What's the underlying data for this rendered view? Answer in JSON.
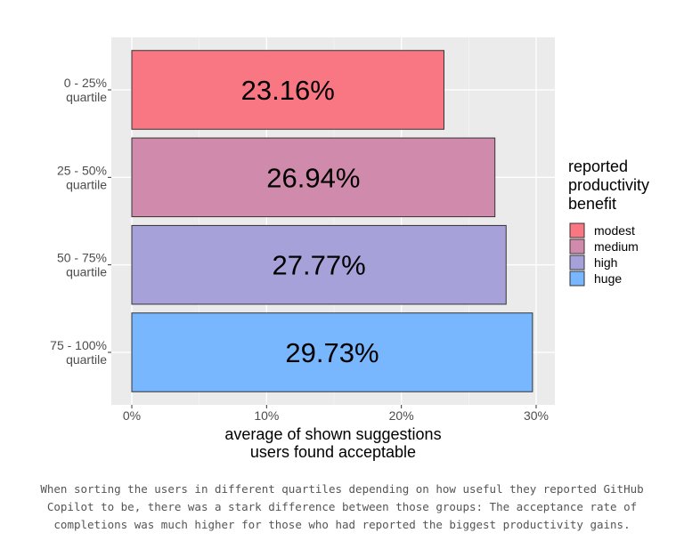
{
  "chart_data": {
    "type": "bar",
    "orientation": "horizontal",
    "categories": [
      "0 - 25%\nquartile",
      "25 - 50%\nquartile",
      "50 - 75%\nquartile",
      "75 - 100%\nquartile"
    ],
    "values": [
      23.16,
      26.94,
      27.77,
      29.73
    ],
    "data_labels": [
      "23.16%",
      "26.94%",
      "27.77%",
      "29.73%"
    ],
    "xlabel": "average of shown suggestions\nusers found acceptable",
    "ylabel": "",
    "xlim": [
      0,
      30
    ],
    "x_ticks": [
      "0%",
      "10%",
      "20%",
      "30%"
    ],
    "grid": true,
    "legend": {
      "title": "reported\nproductivity\nbenefit",
      "position": "right",
      "entries": [
        {
          "label": "modest",
          "color": "#f87783"
        },
        {
          "label": "medium",
          "color": "#d08aab"
        },
        {
          "label": "high",
          "color": "#a6a1d9"
        },
        {
          "label": "huge",
          "color": "#78b6fe"
        }
      ]
    },
    "panel_background": "#ebebeb"
  },
  "caption": "When sorting the users in different quartiles depending on how useful they reported GitHub Copilot to be, there was a stark difference between those groups: The acceptance rate of completions was much higher for those who had reported the biggest productivity gains."
}
